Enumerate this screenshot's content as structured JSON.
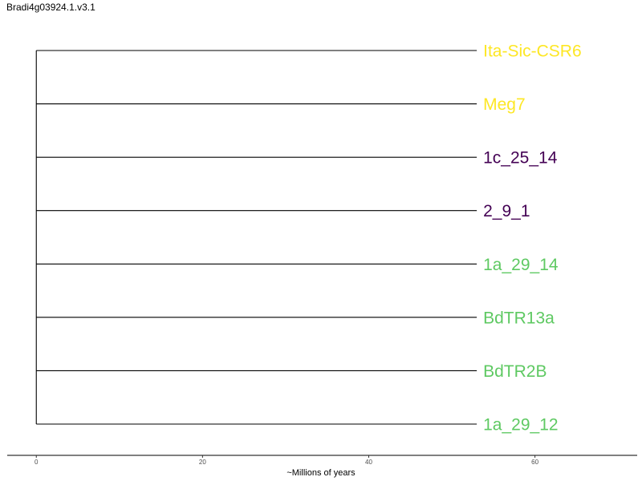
{
  "title": "Bradi4g03924.1.v3.1",
  "chart_data": {
    "type": "tree",
    "root_age": 0,
    "tip_depth": 53,
    "xlim": [
      -3.5,
      72.3
    ],
    "x_ticks": [
      0,
      20,
      40,
      60
    ],
    "xlabel": "~Millions of years",
    "grid": false,
    "tips": [
      {
        "label": "Ita-Sic-CSR6",
        "color": "#FDE725"
      },
      {
        "label": "Meg7",
        "color": "#FDE725"
      },
      {
        "label": "1c_25_14",
        "color": "#440154"
      },
      {
        "label": "2_9_1",
        "color": "#440154"
      },
      {
        "label": "1a_29_14",
        "color": "#5EC962"
      },
      {
        "label": "BdTR13a",
        "color": "#5EC962"
      },
      {
        "label": "BdTR2B",
        "color": "#5EC962"
      },
      {
        "label": "1a_29_12",
        "color": "#5EC962"
      }
    ]
  }
}
